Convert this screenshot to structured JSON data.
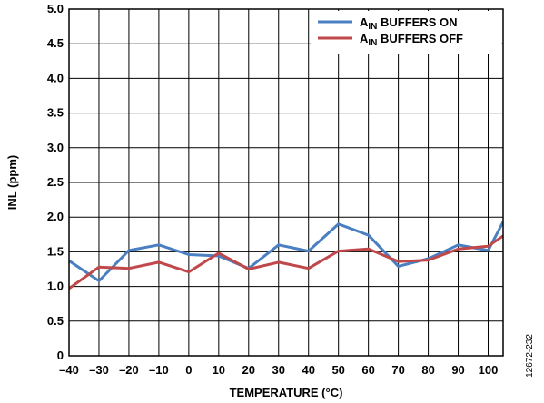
{
  "chart_data": {
    "type": "line",
    "xlabel": "TEMPERATURE (°C)",
    "ylabel": "INL (ppm)",
    "xlim": [
      -40,
      105
    ],
    "ylim": [
      0,
      5.0
    ],
    "x_ticks": [
      -40,
      -30,
      -20,
      -10,
      0,
      10,
      20,
      30,
      40,
      50,
      60,
      70,
      80,
      90,
      100
    ],
    "x_tick_labels": [
      "–40",
      "–30",
      "–20",
      "–10",
      "0",
      "10",
      "20",
      "30",
      "40",
      "50",
      "60",
      "70",
      "80",
      "90",
      "100"
    ],
    "y_ticks": [
      0,
      0.5,
      1.0,
      1.5,
      2.0,
      2.5,
      3.0,
      3.5,
      4.0,
      4.5,
      5.0
    ],
    "y_tick_labels": [
      "0",
      "0.5",
      "1.0",
      "1.5",
      "2.0",
      "2.5",
      "3.0",
      "3.5",
      "4.0",
      "4.5",
      "5.0"
    ],
    "grid": true,
    "legend_position": "top-right",
    "series": [
      {
        "name_main": "A",
        "name_sub": "IN",
        "name_rest": " BUFFERS ON",
        "color": "#4a7fc1",
        "x": [
          -40,
          -30,
          -20,
          -10,
          0,
          10,
          20,
          30,
          40,
          50,
          60,
          70,
          80,
          90,
          100,
          105
        ],
        "y": [
          1.37,
          1.08,
          1.52,
          1.6,
          1.46,
          1.44,
          1.26,
          1.6,
          1.51,
          1.9,
          1.74,
          1.29,
          1.4,
          1.6,
          1.52,
          1.93
        ]
      },
      {
        "name_main": "A",
        "name_sub": "IN",
        "name_rest": " BUFFERS OFF",
        "color": "#c0474a",
        "x": [
          -40,
          -30,
          -20,
          -10,
          0,
          10,
          20,
          30,
          40,
          50,
          60,
          70,
          80,
          90,
          100,
          105
        ],
        "y": [
          0.97,
          1.28,
          1.26,
          1.35,
          1.21,
          1.48,
          1.25,
          1.35,
          1.26,
          1.51,
          1.54,
          1.36,
          1.38,
          1.54,
          1.58,
          1.73
        ]
      }
    ]
  },
  "figure_id": "12672-232"
}
